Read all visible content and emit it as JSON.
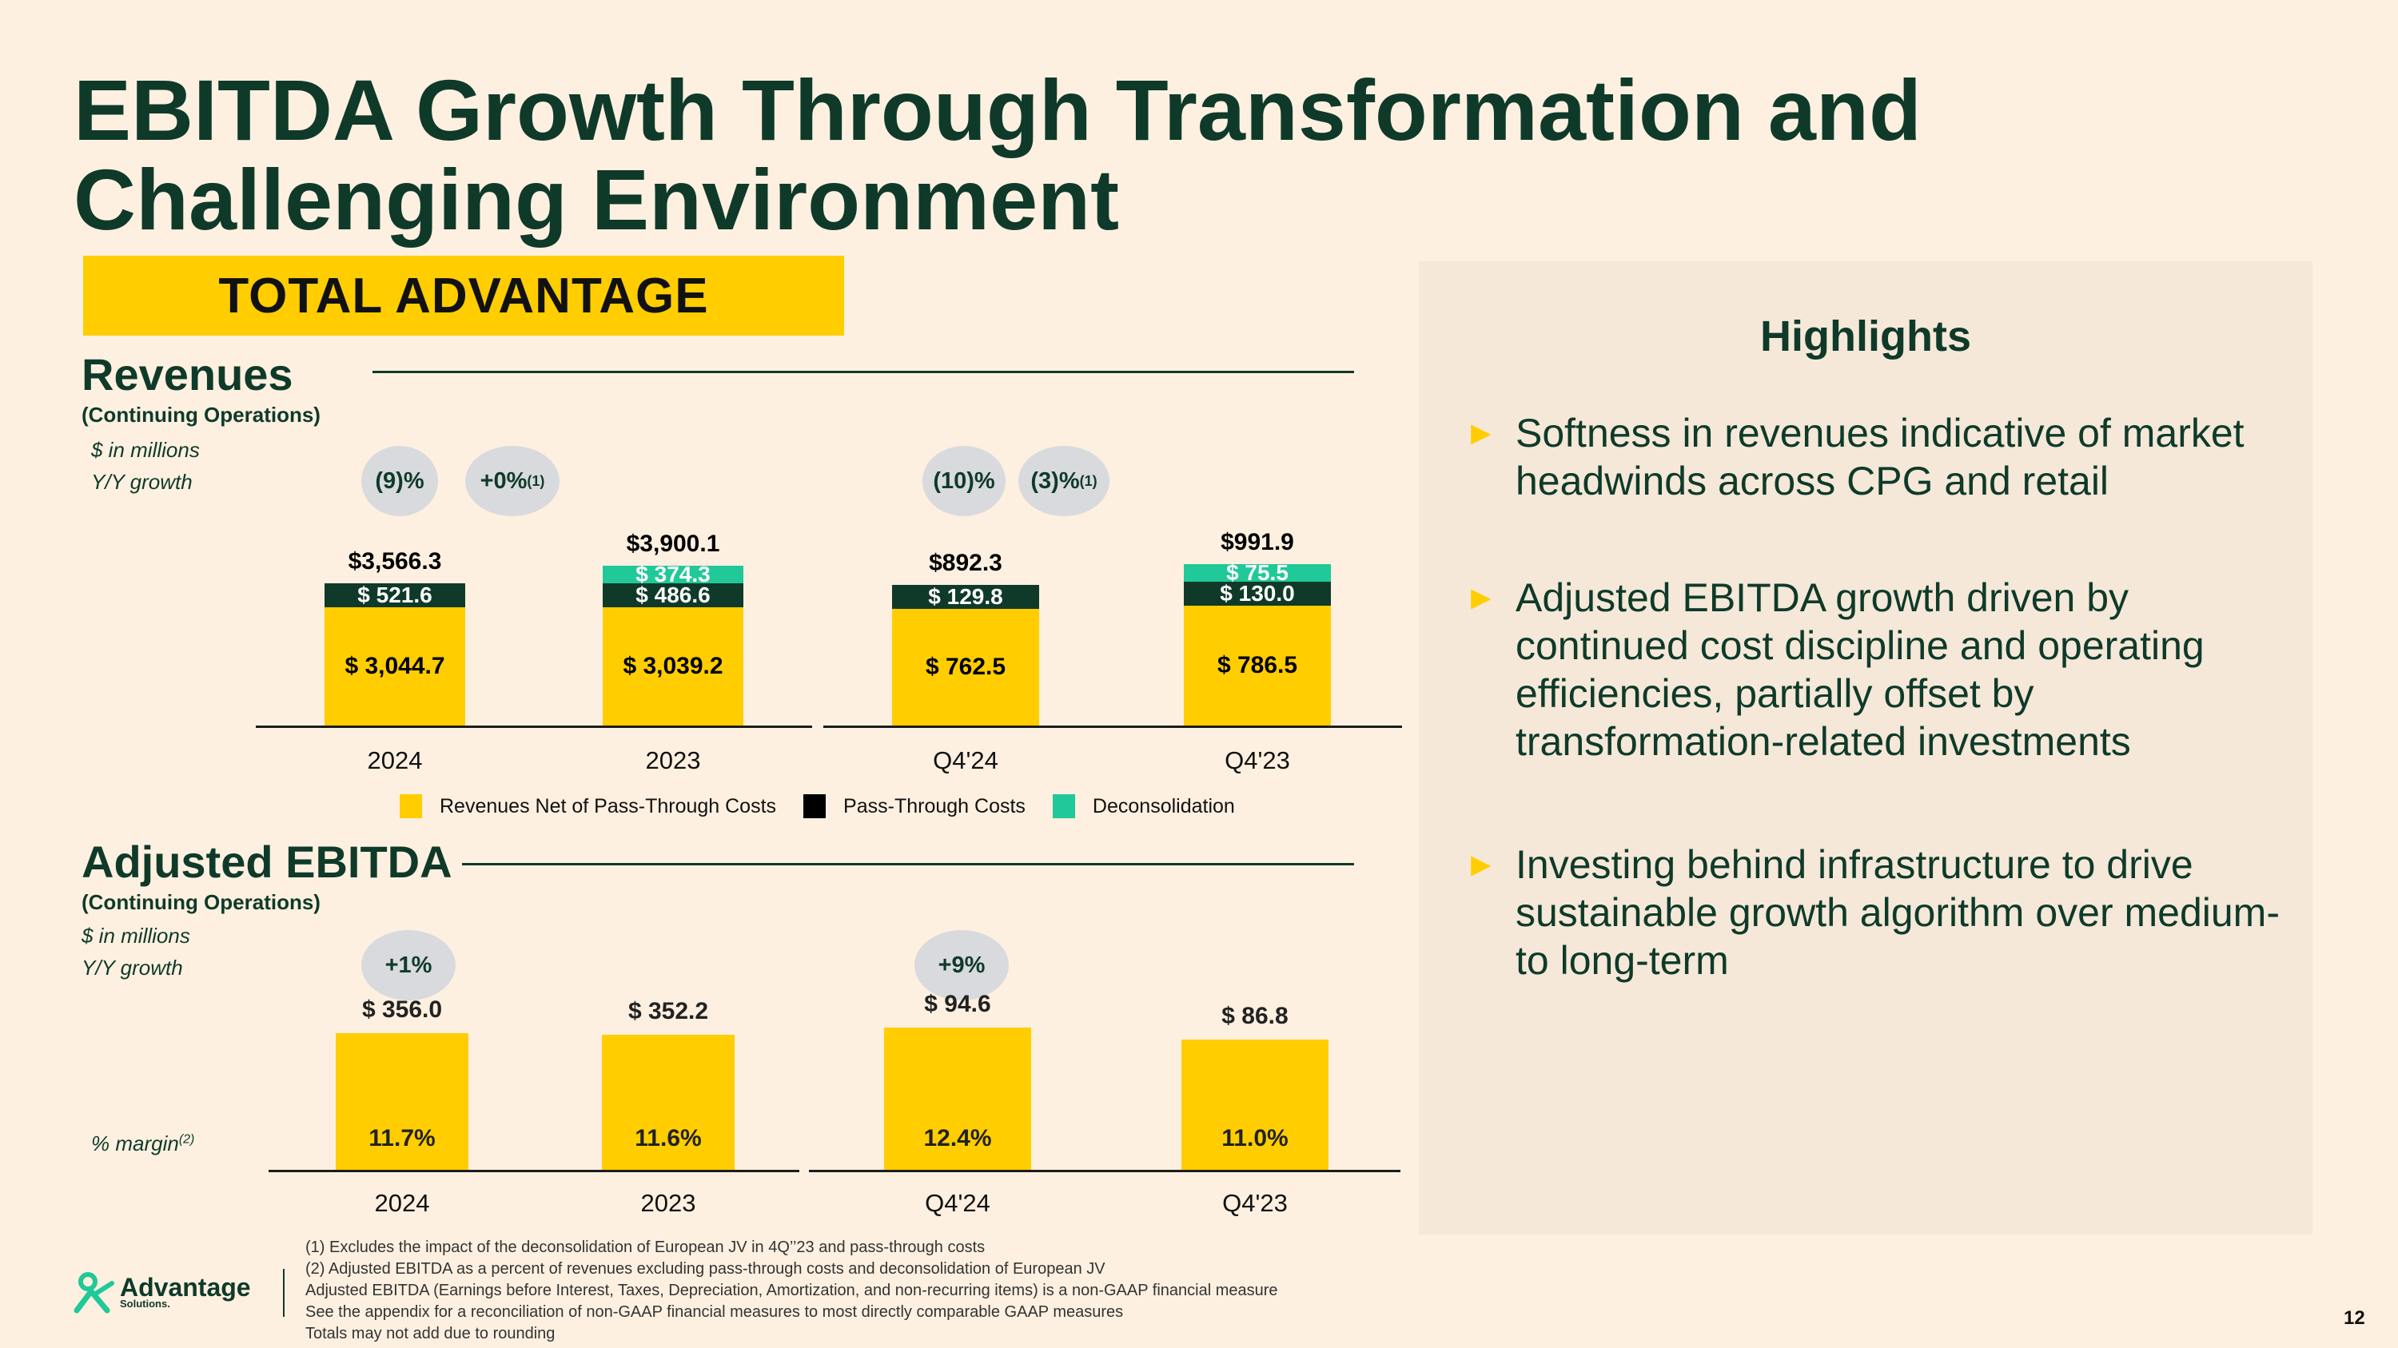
{
  "slide": {
    "title_line1": "EBITDA Growth Through Transformation and",
    "title_line2": "Challenging Environment",
    "banner": "TOTAL ADVANTAGE",
    "page_number": "12"
  },
  "revenues": {
    "title": "Revenues",
    "subtitle": "(Continuing Operations)",
    "units": "$ in millions",
    "growth_label": "Y/Y growth",
    "growth_pills": [
      {
        "text": "(9)%",
        "sup": ""
      },
      {
        "text": "+0%",
        "sup": "(1)"
      },
      {
        "text": "(10)%",
        "sup": ""
      },
      {
        "text": "(3)%",
        "sup": "(1)"
      }
    ]
  },
  "ebitda": {
    "title": "Adjusted EBITDA",
    "subtitle": "(Continuing Operations)",
    "units": "$ in millions",
    "growth_label": "Y/Y growth",
    "margin_label": "% margin",
    "margin_sup": "(2)",
    "growth_pills": [
      "+1%",
      "+9%"
    ]
  },
  "legend": {
    "items": [
      {
        "label": "Revenues Net of Pass-Through Costs",
        "color": "#ffcd00"
      },
      {
        "label": "Pass-Through Costs",
        "color": "#000000"
      },
      {
        "label": "Deconsolidation",
        "color": "#20c997"
      }
    ]
  },
  "highlights": {
    "title": "Highlights",
    "bullets": [
      "Softness in revenues indicative of market headwinds across CPG and retail",
      "Adjusted EBITDA growth driven by continued cost discipline and operating efficiencies, partially offset by transformation-related investments",
      "Investing behind infrastructure to drive sustainable growth algorithm over medium- to long-term"
    ]
  },
  "footnotes": [
    "(1)  Excludes the impact of the deconsolidation of European JV in 4Q’’23 and pass-through costs",
    "(2)  Adjusted EBITDA as a percent of revenues excluding pass-through costs and deconsolidation of European JV",
    "Adjusted EBITDA (Earnings before Interest, Taxes, Depreciation, Amortization, and non-recurring items) is a non-GAAP financial measure",
    "See the appendix for a reconciliation of non-GAAP financial measures to most directly comparable GAAP measures",
    "Totals may not add due to rounding"
  ],
  "logo": {
    "name": "Advantage",
    "sub": "Solutions."
  },
  "colors": {
    "accent": "#ffcd00",
    "dark_green": "#0f3a2a",
    "pass_through": "#0f3a2a",
    "deconsolidation": "#20c997"
  },
  "chart_data": [
    {
      "type": "bar",
      "title": "Revenues (Annual)",
      "stacked": true,
      "categories": [
        "2024",
        "2023"
      ],
      "series": [
        {
          "name": "Revenues Net of Pass-Through Costs",
          "values": [
            3044.7,
            3039.2
          ],
          "labels": [
            "$ 3,044.7",
            "$ 3,039.2"
          ]
        },
        {
          "name": "Pass-Through Costs",
          "values": [
            521.6,
            486.6
          ],
          "labels": [
            "$ 521.6",
            "$ 486.6"
          ]
        },
        {
          "name": "Deconsolidation",
          "values": [
            0,
            374.3
          ],
          "labels": [
            "",
            "$ 374.3"
          ]
        }
      ],
      "totals": [
        "$3,566.3",
        "$3,900.1"
      ]
    },
    {
      "type": "bar",
      "title": "Revenues (Quarterly)",
      "stacked": true,
      "categories": [
        "Q4'24",
        "Q4'23"
      ],
      "series": [
        {
          "name": "Revenues Net of Pass-Through Costs",
          "values": [
            762.5,
            786.5
          ],
          "labels": [
            "$ 762.5",
            "$ 786.5"
          ]
        },
        {
          "name": "Pass-Through Costs",
          "values": [
            129.8,
            130.0
          ],
          "labels": [
            "$ 129.8",
            "$ 130.0"
          ]
        },
        {
          "name": "Deconsolidation",
          "values": [
            0,
            75.5
          ],
          "labels": [
            "",
            "$ 75.5"
          ]
        }
      ],
      "totals": [
        "$892.3",
        "$991.9"
      ]
    },
    {
      "type": "bar",
      "title": "Adjusted EBITDA (Annual)",
      "categories": [
        "2024",
        "2023"
      ],
      "values": [
        356.0,
        352.2
      ],
      "value_labels": [
        "$ 356.0",
        "$ 352.2"
      ],
      "margins": [
        "11.7%",
        "11.6%"
      ]
    },
    {
      "type": "bar",
      "title": "Adjusted EBITDA (Quarterly)",
      "categories": [
        "Q4'24",
        "Q4'23"
      ],
      "values": [
        94.6,
        86.8
      ],
      "value_labels": [
        "$ 94.6",
        "$ 86.8"
      ],
      "margins": [
        "12.4%",
        "11.0%"
      ]
    }
  ]
}
